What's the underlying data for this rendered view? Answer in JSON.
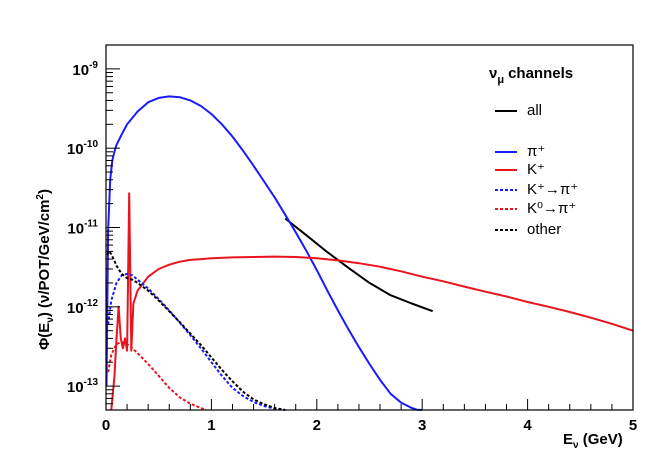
{
  "chart_data": {
    "type": "line",
    "title": "ν_μ channels",
    "xlabel": "E_ν (GeV)",
    "ylabel": "Φ(E_ν)   (ν/POT/GeV/cm²)",
    "xlim": [
      0,
      5
    ],
    "ylim": [
      5e-14,
      2e-09
    ],
    "yscale": "log",
    "x_ticks": [
      "0",
      "1",
      "2",
      "3",
      "4",
      "5"
    ],
    "y_ticks": [
      "10^-9",
      "10^-10",
      "10^-11",
      "10^-12",
      "10^-13"
    ],
    "legend_position": "top-right",
    "series": [
      {
        "name": "all",
        "color": "#000000",
        "dash": "solid",
        "x": [
          1.7,
          1.9,
          2.1,
          2.3,
          2.5,
          2.7,
          2.9,
          3.1
        ],
        "y": [
          1.3e-11,
          8e-12,
          4.9e-12,
          3.1e-12,
          2e-12,
          1.4e-12,
          1.1e-12,
          8.8e-13
        ]
      },
      {
        "name": "π⁺",
        "color": "#1a1aff",
        "dash": "solid",
        "x": [
          0.005,
          0.02,
          0.04,
          0.06,
          0.08,
          0.1,
          0.15,
          0.2,
          0.3,
          0.4,
          0.5,
          0.6,
          0.7,
          0.8,
          0.9,
          1.0,
          1.1,
          1.2,
          1.3,
          1.4,
          1.5,
          1.6,
          1.7,
          1.8,
          1.9,
          2.0,
          2.1,
          2.2,
          2.3,
          2.4,
          2.5,
          2.6,
          2.7,
          2.8,
          2.9,
          2.95,
          3.0
        ],
        "y": [
          1e-13,
          9e-12,
          4e-11,
          7e-11,
          9e-11,
          1.1e-10,
          1.5e-10,
          2e-10,
          2.9e-10,
          3.8e-10,
          4.3e-10,
          4.5e-10,
          4.4e-10,
          4e-10,
          3.4e-10,
          2.7e-10,
          2e-10,
          1.4e-10,
          9.3e-11,
          6e-11,
          3.8e-11,
          2.4e-11,
          1.45e-11,
          8.7e-12,
          5.1e-12,
          2.9e-12,
          1.6e-12,
          9e-13,
          5.2e-13,
          3.1e-13,
          1.9e-13,
          1.2e-13,
          8e-14,
          6.2e-14,
          5.3e-14,
          5.05e-14,
          5e-14
        ]
      },
      {
        "name": "K⁺",
        "color": "#e8141e",
        "dash": "solid",
        "x": [
          0.05,
          0.08,
          0.1,
          0.12,
          0.14,
          0.16,
          0.18,
          0.2,
          0.22,
          0.24,
          0.26,
          0.3,
          0.4,
          0.5,
          0.6,
          0.7,
          0.8,
          0.9,
          1.0,
          1.2,
          1.4,
          1.6,
          1.8,
          2.0,
          2.2,
          2.4,
          2.6,
          2.8,
          3.0,
          3.2,
          3.4,
          3.6,
          3.8,
          4.0,
          4.2,
          4.4,
          4.6,
          4.8,
          5.0
        ],
        "y": [
          5e-14,
          1.3e-13,
          4e-13,
          1e-12,
          4e-13,
          3e-13,
          4e-13,
          2.8e-13,
          2.7e-11,
          2.8e-13,
          1.1e-12,
          1.6e-12,
          2.4e-12,
          3e-12,
          3.4e-12,
          3.7e-12,
          3.9e-12,
          4e-12,
          4.1e-12,
          4.2e-12,
          4.25e-12,
          4.3e-12,
          4.25e-12,
          4.1e-12,
          3.85e-12,
          3.55e-12,
          3.2e-12,
          2.8e-12,
          2.4e-12,
          2.1e-12,
          1.8e-12,
          1.55e-12,
          1.35e-12,
          1.15e-12,
          1e-12,
          8.6e-13,
          7.3e-13,
          6.1e-13,
          5e-13
        ]
      },
      {
        "name": "K⁺→π⁺",
        "color": "#1a1aff",
        "dash": "dashed",
        "x": [
          0.02,
          0.05,
          0.1,
          0.15,
          0.2,
          0.25,
          0.3,
          0.4,
          0.5,
          0.6,
          0.7,
          0.8,
          0.9,
          1.0,
          1.1,
          1.2,
          1.3,
          1.4,
          1.5,
          1.6,
          1.7
        ],
        "y": [
          6e-13,
          1.2e-12,
          2e-12,
          2.5e-12,
          2.6e-12,
          2.5e-12,
          2.2e-12,
          1.7e-12,
          1.25e-12,
          9e-13,
          6.3e-13,
          4.4e-13,
          3e-13,
          2e-13,
          1.35e-13,
          9.5e-14,
          7.5e-14,
          6.3e-14,
          5.6e-14,
          5.2e-14,
          5e-14
        ]
      },
      {
        "name": "K⁰→π⁺",
        "color": "#e8141e",
        "dash": "dashed",
        "x": [
          0.02,
          0.05,
          0.1,
          0.15,
          0.2,
          0.25,
          0.3,
          0.4,
          0.5,
          0.6,
          0.7,
          0.8,
          0.9,
          0.95
        ],
        "y": [
          1.5e-13,
          2.5e-13,
          3.4e-13,
          3.6e-13,
          3.4e-13,
          3e-13,
          2.6e-13,
          1.9e-13,
          1.35e-13,
          9.5e-14,
          7.2e-14,
          6e-14,
          5.3e-14,
          5e-14
        ]
      },
      {
        "name": "other",
        "color": "#000000",
        "dash": "dashed",
        "x": [
          0.01,
          0.03,
          0.05,
          0.08,
          0.1,
          0.15,
          0.2,
          0.25,
          0.3,
          0.4,
          0.5,
          0.6,
          0.7,
          0.8,
          0.9,
          1.0,
          1.1,
          1.2,
          1.3,
          1.4,
          1.5,
          1.6,
          1.7
        ],
        "y": [
          4.5e-12,
          5e-12,
          4.6e-12,
          3.8e-12,
          3.3e-12,
          2.6e-12,
          2.3e-12,
          2.2e-12,
          2e-12,
          1.6e-12,
          1.2e-12,
          8.8e-13,
          6.4e-13,
          4.6e-13,
          3.3e-13,
          2.3e-13,
          1.6e-13,
          1.15e-13,
          8.5e-14,
          6.8e-14,
          5.9e-14,
          5.3e-14,
          5e-14
        ]
      }
    ]
  }
}
